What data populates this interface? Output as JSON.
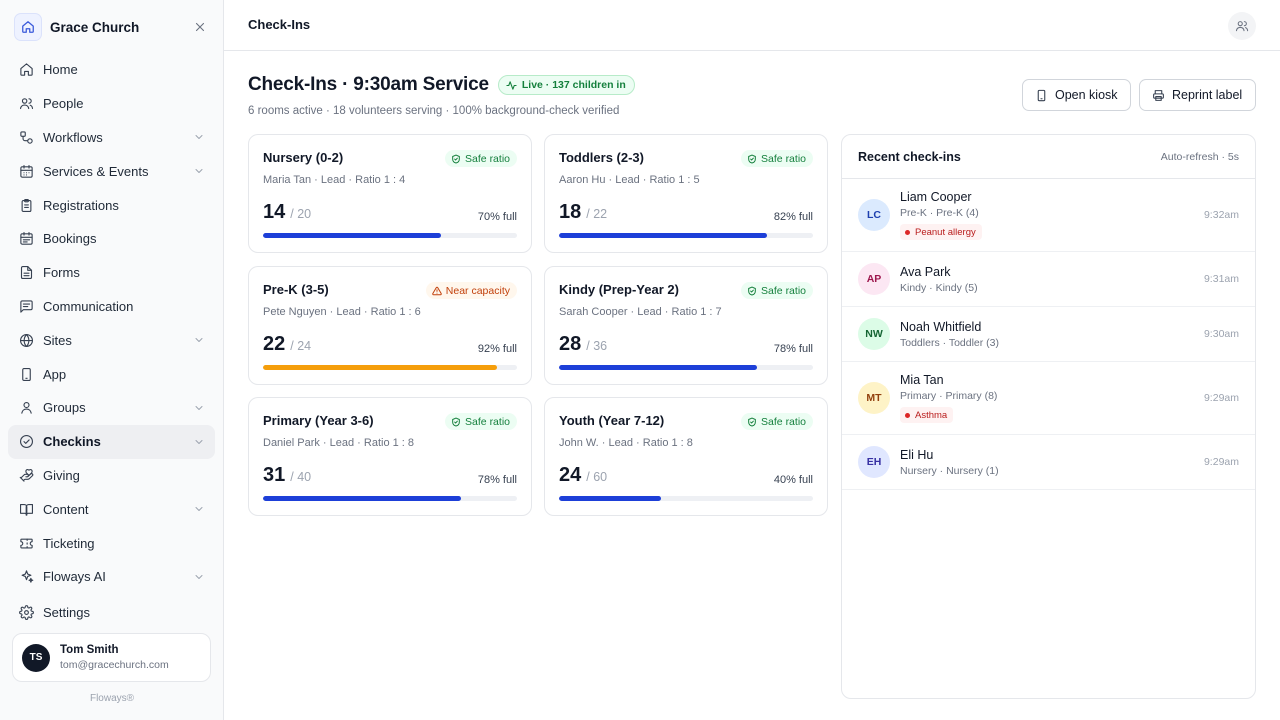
{
  "sidebar": {
    "brand": "Grace Church",
    "nav": [
      {
        "label": "Home",
        "icon": "home-icon",
        "chevron": false
      },
      {
        "label": "People",
        "icon": "people-icon",
        "chevron": false
      },
      {
        "label": "Workflows",
        "icon": "workflow-icon",
        "chevron": true
      },
      {
        "label": "Services & Events",
        "icon": "calendar-icon",
        "chevron": true
      },
      {
        "label": "Registrations",
        "icon": "clipboard-icon",
        "chevron": false
      },
      {
        "label": "Bookings",
        "icon": "calendar-check-icon",
        "chevron": false
      },
      {
        "label": "Forms",
        "icon": "file-text-icon",
        "chevron": false
      },
      {
        "label": "Communication",
        "icon": "message-icon",
        "chevron": false
      },
      {
        "label": "Sites",
        "icon": "globe-icon",
        "chevron": true
      },
      {
        "label": "App",
        "icon": "smartphone-icon",
        "chevron": false
      },
      {
        "label": "Groups",
        "icon": "user-group-icon",
        "chevron": true
      },
      {
        "label": "Checkins",
        "icon": "check-circle-icon",
        "chevron": true,
        "active": true
      },
      {
        "label": "Giving",
        "icon": "hand-heart-icon",
        "chevron": false
      },
      {
        "label": "Content",
        "icon": "book-icon",
        "chevron": true
      },
      {
        "label": "Ticketing",
        "icon": "ticket-icon",
        "chevron": false
      },
      {
        "label": "Floways AI",
        "icon": "sparkles-icon",
        "chevron": true
      }
    ],
    "settings_label": "Settings",
    "user": {
      "initials": "TS",
      "name": "Tom Smith",
      "email": "tom@gracechurch.com"
    },
    "footer": "Floways®"
  },
  "topbar": {
    "title": "Check-Ins"
  },
  "header": {
    "title": "Check-Ins · 9:30am Service",
    "live_badge": "Live · 137 children in",
    "subtitle": "6 rooms active · 18 volunteers serving · 100% background-check verified",
    "open_kiosk": "Open kiosk",
    "reprint_label": "Reprint label"
  },
  "rooms": [
    {
      "name": "Nursery (0-2)",
      "status": "Safe ratio",
      "status_type": "safe",
      "lead": "Maria Tan · Lead · Ratio 1 : 4",
      "count": "14",
      "capacity": "/ 20",
      "pct_label": "70% full",
      "fill": 0.7
    },
    {
      "name": "Toddlers (2-3)",
      "status": "Safe ratio",
      "status_type": "safe",
      "lead": "Aaron Hu · Lead · Ratio 1 : 5",
      "count": "18",
      "capacity": "/ 22",
      "pct_label": "82% full",
      "fill": 0.82
    },
    {
      "name": "Pre-K (3-5)",
      "status": "Near capacity",
      "status_type": "near",
      "lead": "Pete Nguyen · Lead · Ratio 1 : 6",
      "count": "22",
      "capacity": "/ 24",
      "pct_label": "92% full",
      "fill": 0.92
    },
    {
      "name": "Kindy (Prep-Year 2)",
      "status": "Safe ratio",
      "status_type": "safe",
      "lead": "Sarah Cooper · Lead · Ratio 1 : 7",
      "count": "28",
      "capacity": "/ 36",
      "pct_label": "78% full",
      "fill": 0.78
    },
    {
      "name": "Primary (Year 3-6)",
      "status": "Safe ratio",
      "status_type": "safe",
      "lead": "Daniel Park · Lead · Ratio 1 : 8",
      "count": "31",
      "capacity": "/ 40",
      "pct_label": "78% full",
      "fill": 0.78
    },
    {
      "name": "Youth (Year 7-12)",
      "status": "Safe ratio",
      "status_type": "safe",
      "lead": "John W. · Lead · Ratio 1 : 8",
      "count": "24",
      "capacity": "/ 60",
      "pct_label": "40% full",
      "fill": 0.4
    }
  ],
  "recent": {
    "title": "Recent check-ins",
    "auto_refresh": "Auto-refresh · 5s",
    "items": [
      {
        "initials": "LC",
        "name": "Liam Cooper",
        "sub": "Pre-K · Pre-K (4)",
        "tag": "Peanut allergy",
        "time": "9:32am",
        "bg": "#dbeafe",
        "fg": "#1e40af"
      },
      {
        "initials": "AP",
        "name": "Ava Park",
        "sub": "Kindy · Kindy (5)",
        "tag": "",
        "time": "9:31am",
        "bg": "#fce7f3",
        "fg": "#9d174d"
      },
      {
        "initials": "NW",
        "name": "Noah Whitfield",
        "sub": "Toddlers · Toddler (3)",
        "tag": "",
        "time": "9:30am",
        "bg": "#dcfce7",
        "fg": "#166534"
      },
      {
        "initials": "MT",
        "name": "Mia Tan",
        "sub": "Primary · Primary (8)",
        "tag": "Asthma",
        "time": "9:29am",
        "bg": "#fef3c7",
        "fg": "#92400e"
      },
      {
        "initials": "EH",
        "name": "Eli Hu",
        "sub": "Nursery · Nursery (1)",
        "tag": "",
        "time": "9:29am",
        "bg": "#e0e7ff",
        "fg": "#3730a3"
      }
    ]
  }
}
